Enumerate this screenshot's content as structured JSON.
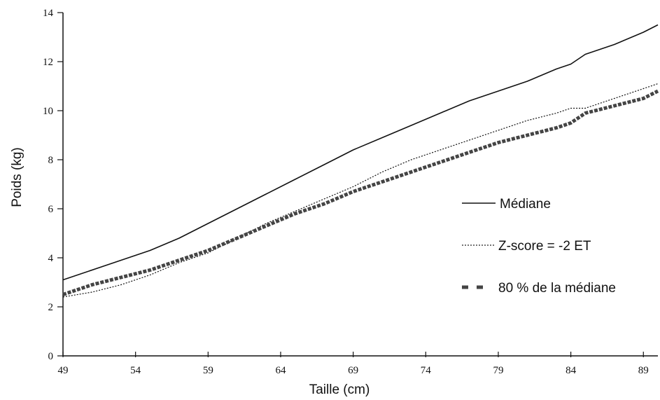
{
  "chart_data": {
    "type": "line",
    "xlabel": "Taille (cm)",
    "ylabel": "Poids (kg)",
    "xlim": [
      49,
      90
    ],
    "ylim": [
      0,
      14
    ],
    "x_ticks": [
      49,
      54,
      59,
      64,
      69,
      74,
      79,
      84,
      89
    ],
    "x_tick_labels": [
      "49",
      "54",
      "59",
      "64",
      "69",
      "74",
      "79",
      "84",
      "89"
    ],
    "y_ticks": [
      0,
      2,
      4,
      6,
      8,
      10,
      12,
      14
    ],
    "y_tick_labels": [
      "0",
      "2",
      "4",
      "6",
      "8",
      "10",
      "12",
      "14"
    ],
    "grid": false,
    "legend_position": "right",
    "series": [
      {
        "name": "Médiane",
        "style": "solid",
        "x": [
          49,
          52,
          55,
          57,
          59,
          61,
          63,
          65,
          67,
          69,
          71,
          73,
          75,
          77,
          79,
          81,
          83,
          84,
          85,
          87,
          89,
          90
        ],
        "y": [
          3.1,
          3.7,
          4.3,
          4.8,
          5.4,
          6.0,
          6.6,
          7.2,
          7.8,
          8.4,
          8.9,
          9.4,
          9.9,
          10.4,
          10.8,
          11.2,
          11.7,
          11.9,
          12.3,
          12.7,
          13.2,
          13.5
        ]
      },
      {
        "name": "Z-score = -2 ET",
        "style": "dotted",
        "x": [
          49,
          51,
          53,
          55,
          57,
          59,
          61,
          63,
          65,
          67,
          69,
          71,
          73,
          75,
          77,
          79,
          81,
          83,
          84,
          85,
          87,
          89,
          90
        ],
        "y": [
          2.4,
          2.6,
          2.9,
          3.3,
          3.8,
          4.2,
          4.8,
          5.4,
          5.9,
          6.4,
          6.9,
          7.5,
          8.0,
          8.4,
          8.8,
          9.2,
          9.6,
          9.9,
          10.1,
          10.1,
          10.5,
          10.9,
          11.1
        ]
      },
      {
        "name": "80 % de la médiane",
        "style": "dashed-thick",
        "x": [
          49,
          51,
          53,
          55,
          57,
          59,
          61,
          63,
          65,
          67,
          69,
          71,
          73,
          75,
          77,
          79,
          81,
          83,
          84,
          85,
          87,
          89,
          90
        ],
        "y": [
          2.5,
          2.9,
          3.2,
          3.5,
          3.9,
          4.3,
          4.8,
          5.3,
          5.8,
          6.2,
          6.7,
          7.1,
          7.5,
          7.9,
          8.3,
          8.7,
          9.0,
          9.3,
          9.5,
          9.9,
          10.2,
          10.5,
          10.8
        ]
      }
    ]
  },
  "colors": {
    "axis": "#111111",
    "line": "#111111",
    "dashed_line": "#444444",
    "background": "#ffffff"
  }
}
